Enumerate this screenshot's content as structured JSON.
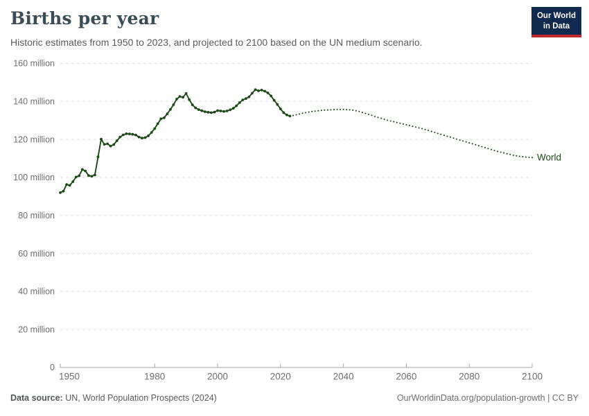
{
  "header": {
    "title": "Births per year",
    "subtitle": "Historic estimates from 1950 to 2023, and projected to 2100 based on the UN medium scenario.",
    "logo": {
      "line1": "Our World",
      "line2": "in Data",
      "bg_color": "#10294f",
      "accent_color": "#c2292e"
    }
  },
  "footer": {
    "source_label": "Data source:",
    "source_value": " UN, World Population Prospects (2024)",
    "right_text": "OurWorldinData.org/population-growth | CC BY"
  },
  "chart_data": {
    "type": "line",
    "title": "Births per year",
    "series_label": "World",
    "unit": "million births",
    "line_color": "#1c4a15",
    "grid_color": "#dedede",
    "axis_color": "#a5a5a5",
    "tick_text_color": "#6e6e6e",
    "grid": "horizontal dashed",
    "legend_position": "end-of-line label",
    "xlim": [
      1950,
      2100
    ],
    "ylim": [
      0,
      160
    ],
    "x_ticks": [
      1950,
      1980,
      2000,
      2020,
      2040,
      2060,
      2080,
      2100
    ],
    "x_tick_labels": [
      "1950",
      "1980",
      "2000",
      "2020",
      "2040",
      "2060",
      "2080",
      "2100"
    ],
    "y_ticks": [
      0,
      20,
      40,
      60,
      80,
      100,
      120,
      140,
      160
    ],
    "y_tick_labels": [
      "0",
      "20 million",
      "40 million",
      "60 million",
      "80 million",
      "100 million",
      "120 million",
      "140 million",
      "160 million"
    ],
    "series": [
      {
        "name": "World (historic estimates)",
        "style": "solid line with year markers",
        "start_year": 1950,
        "values": [
          92.0,
          92.8,
          96.3,
          95.8,
          97.8,
          100.2,
          100.9,
          104.2,
          103.4,
          101.0,
          100.6,
          101.3,
          110.8,
          120.2,
          117.4,
          117.7,
          116.5,
          117.3,
          119.3,
          121.3,
          122.4,
          123.0,
          122.9,
          122.7,
          122.3,
          121.3,
          120.7,
          121.0,
          121.9,
          123.7,
          125.7,
          128.3,
          130.9,
          131.4,
          133.5,
          135.8,
          138.3,
          141.2,
          142.6,
          142.2,
          144.2,
          141.0,
          138.2,
          136.6,
          135.7,
          135.1,
          134.6,
          134.3,
          134.1,
          134.4,
          135.2,
          135.0,
          134.7,
          135.0,
          135.6,
          136.4,
          137.7,
          139.4,
          140.8,
          141.5,
          142.4,
          144.3,
          146.2,
          145.6,
          146.0,
          145.4,
          144.5,
          142.9,
          140.6,
          138.4,
          136.1,
          134.1,
          132.9,
          132.3
        ]
      },
      {
        "name": "World (UN medium scenario projection)",
        "style": "dotted",
        "start_year": 2023,
        "values": [
          132.3,
          132.6,
          133.0,
          133.4,
          133.8,
          134.1,
          134.4,
          134.7,
          134.9,
          135.1,
          135.3,
          135.4,
          135.5,
          135.6,
          135.7,
          135.8,
          135.8,
          135.8,
          135.7,
          135.6,
          135.4,
          135.1,
          134.7,
          134.2,
          133.7,
          133.2,
          132.7,
          132.1,
          131.6,
          131.1,
          130.6,
          130.1,
          129.7,
          129.3,
          128.9,
          128.5,
          128.1,
          127.7,
          127.3,
          126.9,
          126.5,
          126.1,
          125.7,
          125.2,
          124.7,
          124.2,
          123.7,
          123.2,
          122.7,
          122.2,
          121.7,
          121.2,
          120.7,
          120.2,
          119.7,
          119.2,
          118.7,
          118.2,
          117.7,
          117.2,
          116.7,
          116.2,
          115.7,
          115.2,
          114.7,
          114.2,
          113.7,
          113.3,
          112.9,
          112.5,
          112.1,
          111.7,
          111.4,
          111.1,
          110.9,
          110.7,
          110.6,
          110.5
        ]
      }
    ]
  }
}
